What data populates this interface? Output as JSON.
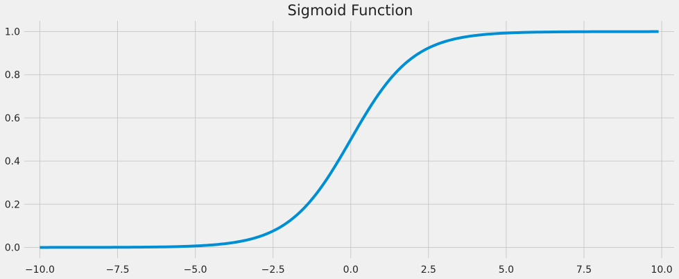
{
  "chart_data": {
    "type": "line",
    "title": "Sigmoid Function",
    "xlabel": "",
    "ylabel": "",
    "xlim": [
      -10.5,
      10.4
    ],
    "ylim": [
      -0.05,
      1.05
    ],
    "x_ticks": [
      -10.0,
      -7.5,
      -5.0,
      -2.5,
      0.0,
      2.5,
      5.0,
      7.5,
      10.0
    ],
    "x_tick_labels": [
      "−10.0",
      "−7.5",
      "−5.0",
      "−2.5",
      "0.0",
      "2.5",
      "5.0",
      "7.5",
      "10.0"
    ],
    "y_ticks": [
      0.0,
      0.2,
      0.4,
      0.6,
      0.8,
      1.0
    ],
    "y_tick_labels": [
      "0.0",
      "0.2",
      "0.4",
      "0.6",
      "0.8",
      "1.0"
    ],
    "grid": true,
    "series": [
      {
        "color": "#008fd5",
        "x": [
          -10,
          -9,
          -8,
          -7,
          -6,
          -5,
          -4.5,
          -4,
          -3.5,
          -3,
          -2.5,
          -2,
          -1.5,
          -1,
          -0.5,
          0,
          0.5,
          1,
          1.5,
          2,
          2.5,
          3,
          3.5,
          4,
          4.5,
          5,
          6,
          7,
          8,
          9,
          9.9
        ],
        "y": [
          5e-05,
          0.00012,
          0.00034,
          0.00091,
          0.00247,
          0.00669,
          0.01099,
          0.01799,
          0.02931,
          0.04743,
          0.07586,
          0.1192,
          0.18243,
          0.26894,
          0.37754,
          0.5,
          0.62246,
          0.73106,
          0.81757,
          0.8808,
          0.92414,
          0.95257,
          0.97069,
          0.98201,
          0.98901,
          0.99331,
          0.99753,
          0.99909,
          0.99966,
          0.99988,
          0.99995
        ]
      }
    ]
  }
}
